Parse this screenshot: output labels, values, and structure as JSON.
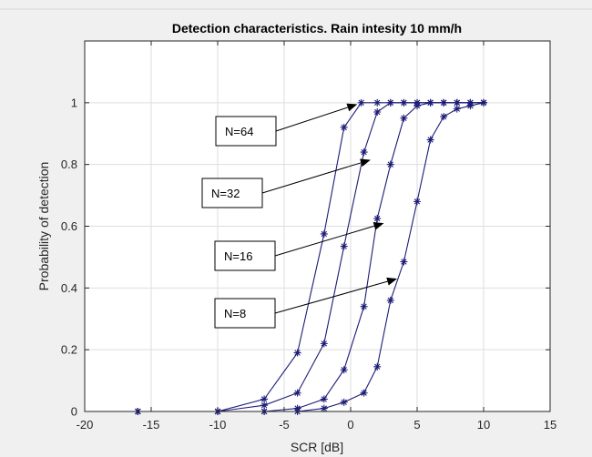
{
  "chart_data": {
    "type": "line",
    "title": "Detection characteristics. Rain intesity 10 mm/h",
    "xlabel": "SCR [dB]",
    "ylabel": "Probability of detection",
    "xlim": [
      -20,
      15
    ],
    "ylim": [
      0,
      1.2
    ],
    "xticks": [
      -20,
      -15,
      -10,
      -5,
      0,
      5,
      10,
      15
    ],
    "xtick_labels": [
      "-20",
      "-15",
      "-10",
      "-5",
      "0",
      "5",
      "10",
      "15"
    ],
    "yticks": [
      0,
      0.2,
      0.4,
      0.6,
      0.8,
      1
    ],
    "ytick_labels": [
      "0",
      "0.2",
      "0.4",
      "0.6",
      "0.8",
      "1"
    ],
    "grid": true,
    "line_color": "#1c1c78",
    "marker": "asterisk",
    "series": [
      {
        "x": [
          -16,
          -10,
          -6.5,
          -4,
          -2,
          -0.5,
          0.8,
          2,
          3,
          4,
          5,
          6,
          7,
          8,
          9,
          10
        ],
        "y": [
          0,
          0,
          0.04,
          0.19,
          0.575,
          0.92,
          1,
          1,
          1,
          1,
          1,
          1,
          1,
          1,
          1,
          1
        ]
      },
      {
        "x": [
          -16,
          -10,
          -6.5,
          -4,
          -2,
          -0.5,
          1,
          2,
          3,
          4,
          5,
          6,
          7,
          8,
          9,
          10
        ],
        "y": [
          0,
          0,
          0.02,
          0.06,
          0.22,
          0.535,
          0.84,
          0.97,
          1,
          1,
          1,
          1,
          1,
          1,
          1,
          1
        ]
      },
      {
        "x": [
          -16,
          -10,
          -6.5,
          -4,
          -2,
          -0.5,
          1,
          2,
          3,
          4,
          5,
          6,
          7,
          8,
          9,
          10
        ],
        "y": [
          0,
          0,
          0,
          0.01,
          0.04,
          0.135,
          0.34,
          0.625,
          0.8,
          0.95,
          0.99,
          1,
          1,
          1,
          1,
          1
        ]
      },
      {
        "x": [
          -16,
          -10,
          -6.5,
          -4,
          -2,
          -0.5,
          1,
          2,
          3,
          4,
          5,
          6,
          7,
          8,
          9,
          10
        ],
        "y": [
          0,
          0,
          0,
          0,
          0.01,
          0.03,
          0.06,
          0.145,
          0.36,
          0.485,
          0.68,
          0.88,
          0.955,
          0.98,
          0.99,
          1
        ]
      }
    ],
    "annotations": [
      {
        "text": "N=64",
        "target": [
          0.5,
          0.995
        ]
      },
      {
        "text": "N=32",
        "target": [
          1.5,
          0.815
        ]
      },
      {
        "text": "N=16",
        "target": [
          2.5,
          0.61
        ]
      },
      {
        "text": "N=8",
        "target": [
          3.5,
          0.43
        ]
      }
    ],
    "zero_line": {
      "x_from": -16,
      "x_to": 10
    }
  }
}
